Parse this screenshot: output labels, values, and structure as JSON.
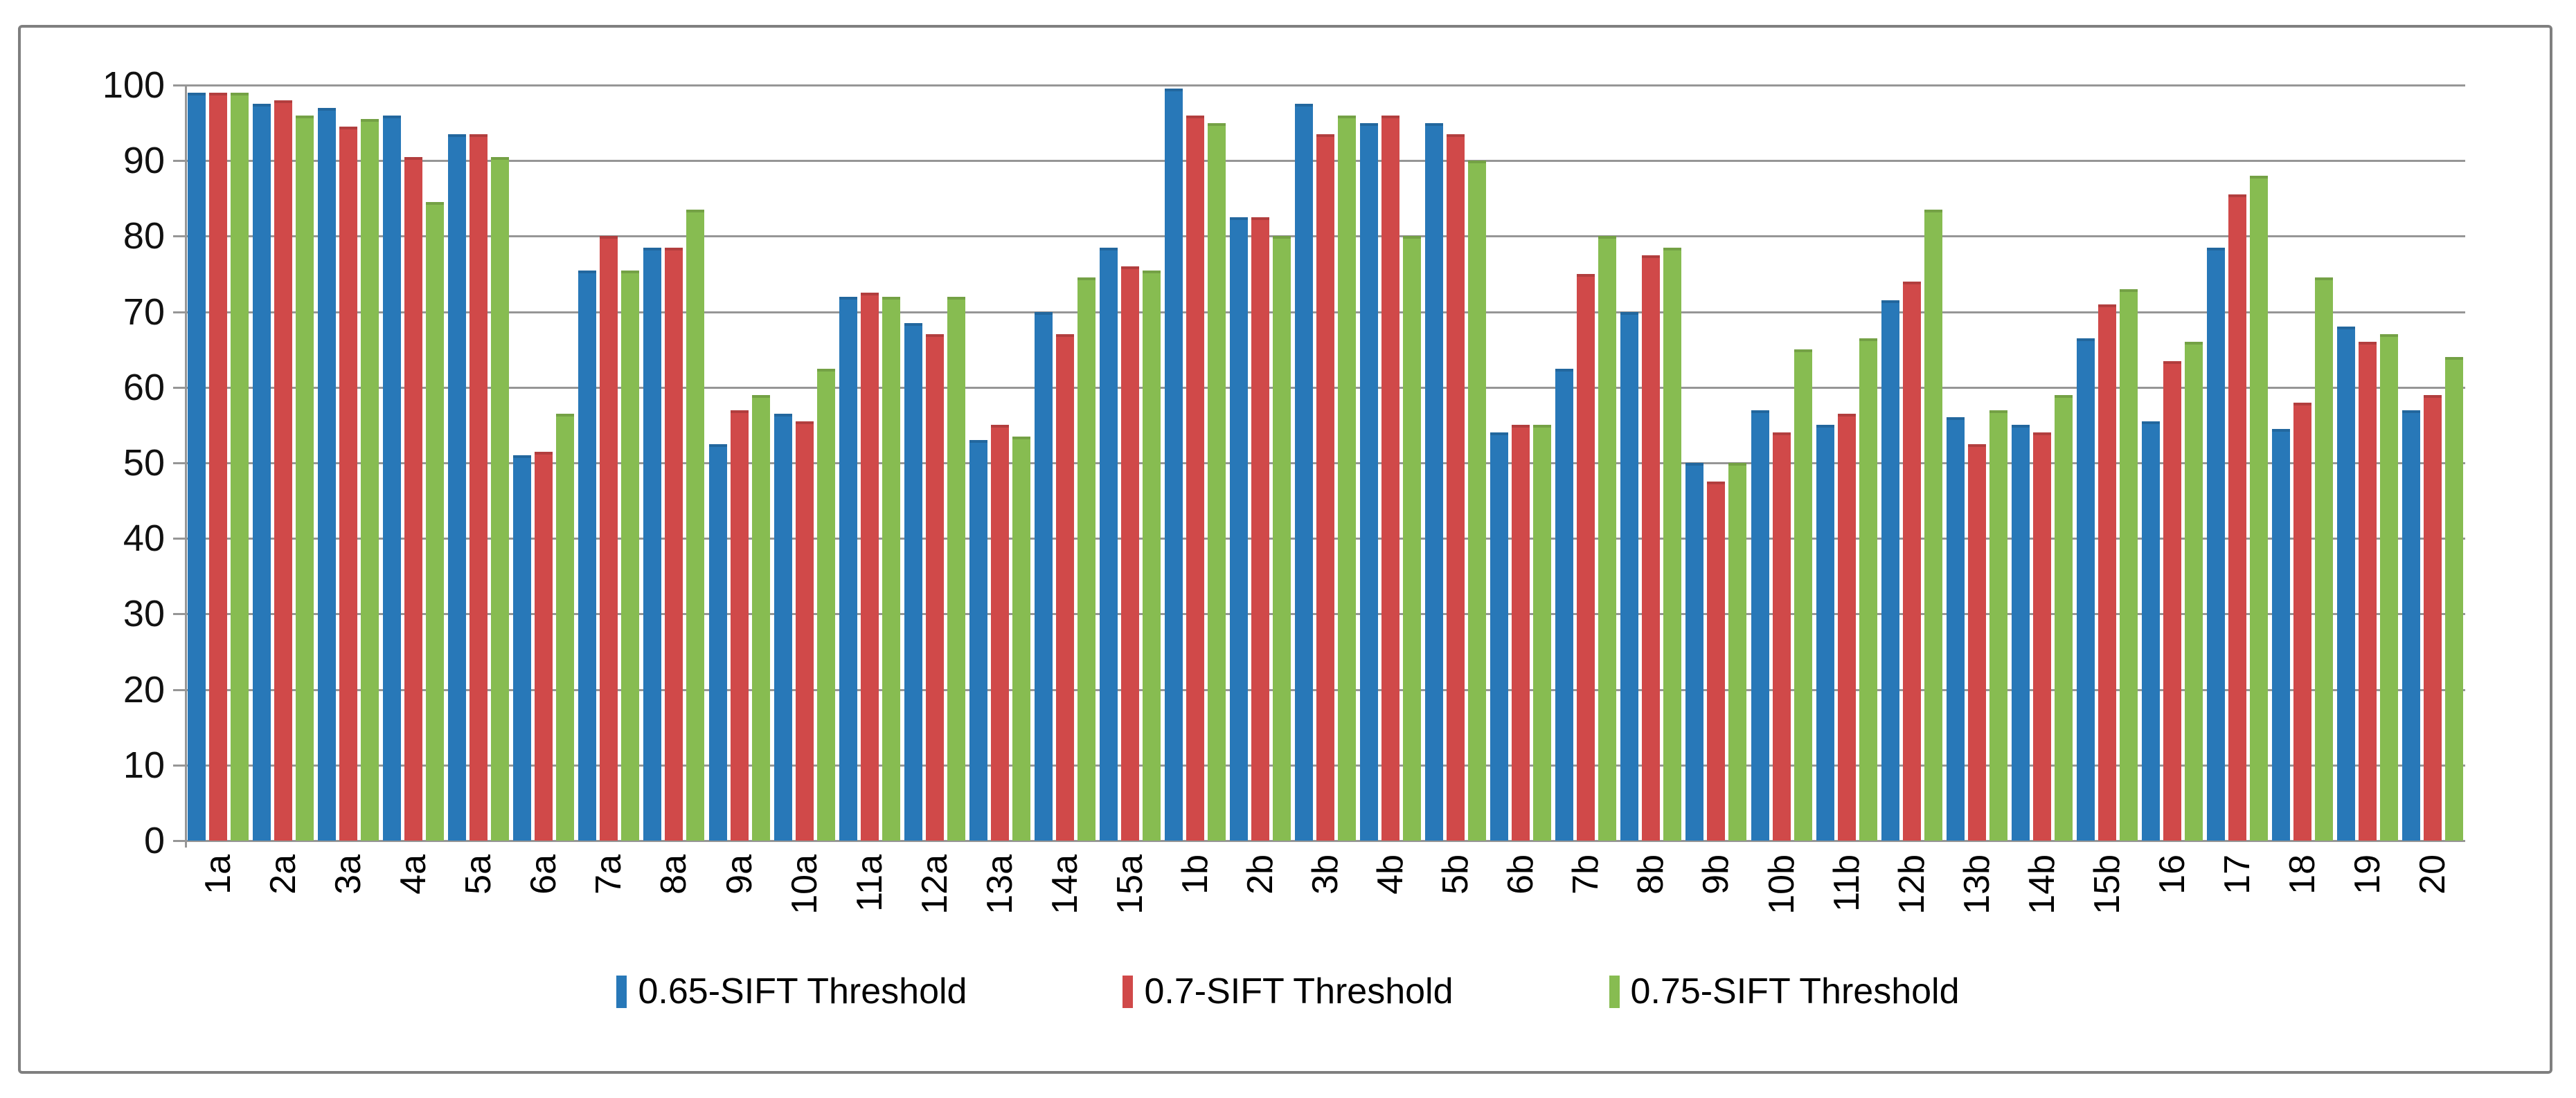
{
  "chart_data": {
    "type": "bar",
    "title": "",
    "xlabel": "",
    "ylabel": "",
    "ylim": [
      0,
      100
    ],
    "yticks": [
      0,
      10,
      20,
      30,
      40,
      50,
      60,
      70,
      80,
      90,
      100
    ],
    "grid": true,
    "legend_position": "bottom",
    "categories": [
      "1a",
      "2a",
      "3a",
      "4a",
      "5a",
      "6a",
      "7a",
      "8a",
      "9a",
      "10a",
      "11a",
      "12a",
      "13a",
      "14a",
      "15a",
      "1b",
      "2b",
      "3b",
      "4b",
      "5b",
      "6b",
      "7b",
      "8b",
      "9b",
      "10b",
      "11b",
      "12b",
      "13b",
      "14b",
      "15b",
      "16",
      "17",
      "18",
      "19",
      "20"
    ],
    "series": [
      {
        "name": "0.65-SIFT Threshold",
        "color": "#2878B8",
        "values": [
          99,
          97.5,
          97,
          96,
          93.5,
          51,
          75.5,
          78.5,
          52.5,
          56.5,
          72,
          68.5,
          53,
          70,
          78.5,
          99.5,
          82.5,
          97.5,
          95,
          95,
          54,
          62.5,
          70,
          50,
          57,
          55,
          71.5,
          56,
          55,
          66.5,
          55.5,
          78.5,
          54.5,
          68,
          57
        ]
      },
      {
        "name": "0.7-SIFT Threshold",
        "color": "#D04949",
        "values": [
          99,
          98,
          94.5,
          90.5,
          93.5,
          51.5,
          80,
          78.5,
          57,
          55.5,
          72.5,
          67,
          55,
          67,
          76,
          96,
          82.5,
          93.5,
          96,
          93.5,
          55,
          75,
          77.5,
          47.5,
          54,
          56.5,
          74,
          52.5,
          54,
          71,
          63.5,
          85.5,
          58,
          66,
          59
        ]
      },
      {
        "name": "0.75-SIFT Threshold",
        "color": "#87BC51",
        "values": [
          99,
          96,
          95.5,
          84.5,
          90.5,
          56.5,
          75.5,
          83.5,
          59,
          62.5,
          72,
          72,
          53.5,
          74.5,
          75.5,
          95,
          80,
          96,
          80,
          90,
          55,
          80,
          78.5,
          50,
          65,
          66.5,
          83.5,
          57,
          59,
          73,
          66,
          88,
          74.5,
          67,
          64
        ]
      }
    ]
  }
}
